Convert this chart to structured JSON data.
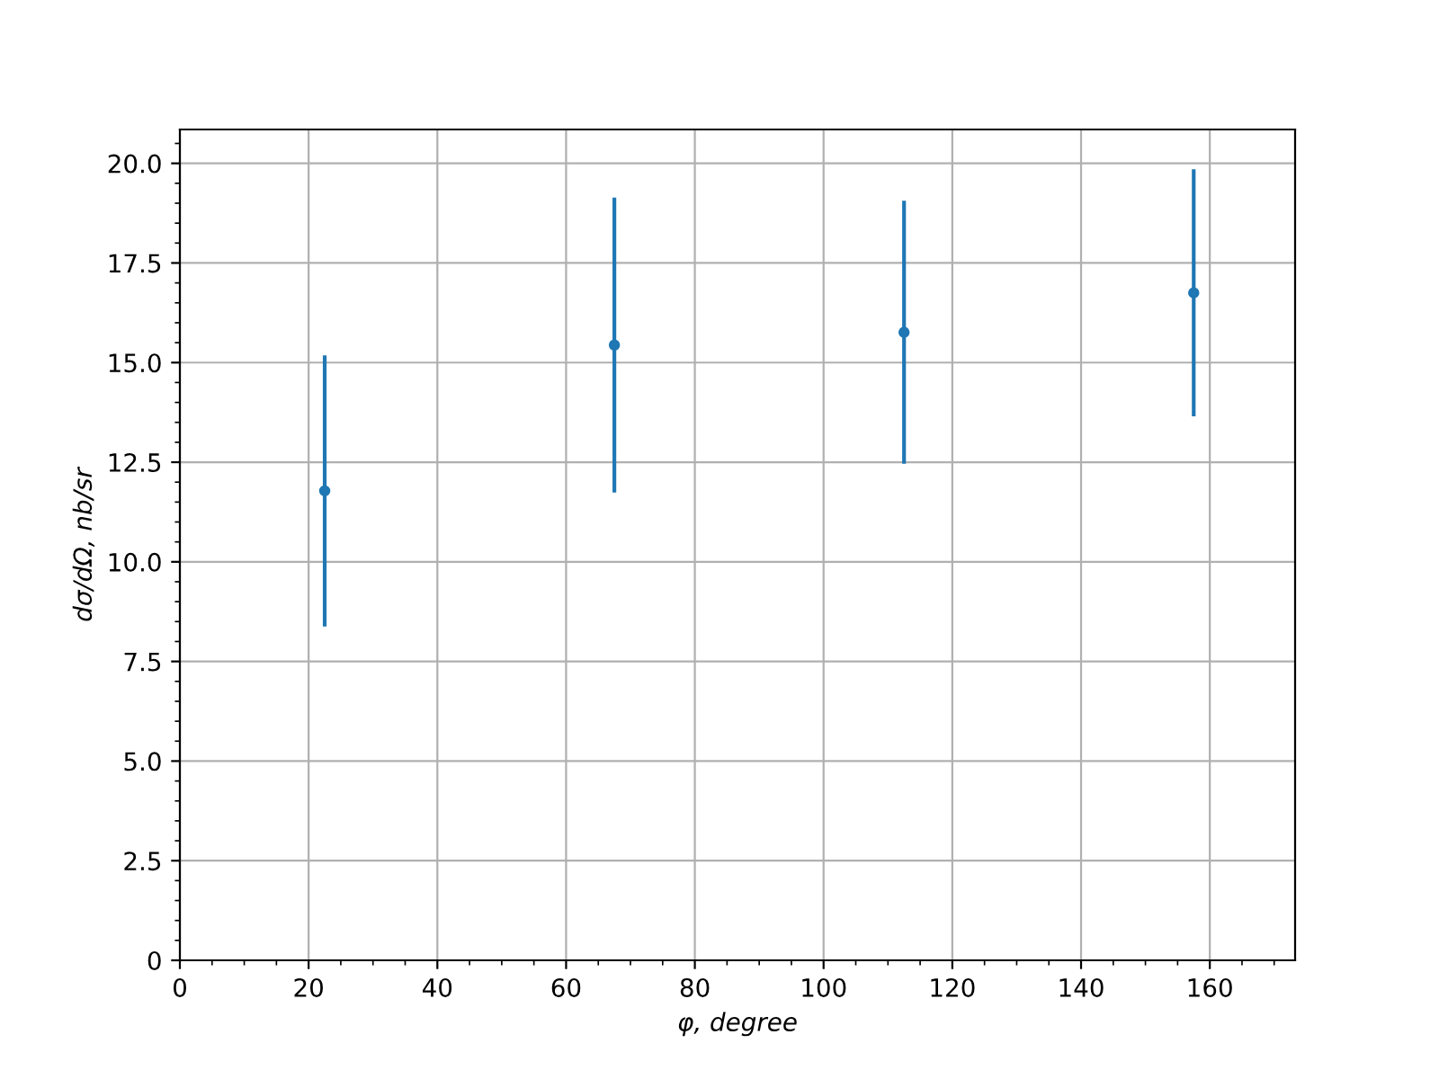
{
  "chart_data": {
    "type": "scatter",
    "xlabel": "φ, degree",
    "ylabel": "dσ/dΩ, nb/sr",
    "x": [
      22.5,
      67.5,
      112.5,
      157.5
    ],
    "series": [
      {
        "color": "#1f77b4",
        "values": [
          11.78,
          15.44,
          15.76,
          16.75
        ],
        "errors": [
          3.4,
          3.7,
          3.3,
          3.1
        ]
      }
    ],
    "marker": "circle",
    "grid": true,
    "xlim": [
      0,
      173.25
    ],
    "xticks": [
      0,
      20,
      40,
      60,
      80,
      100,
      120,
      140,
      160
    ],
    "ylim": [
      0,
      20.85
    ],
    "yticks": [
      0,
      {
        "value": 2.5,
        "label": "2.5"
      },
      {
        "value": 5,
        "label": "5.0"
      },
      {
        "value": 7.5,
        "label": "7.5"
      },
      {
        "value": 10,
        "label": "10.0"
      },
      {
        "value": 12.5,
        "label": "12.5"
      },
      {
        "value": 15,
        "label": "15.0"
      },
      {
        "value": 17.5,
        "label": "17.5"
      },
      {
        "value": 20,
        "label": "20.0"
      }
    ]
  }
}
